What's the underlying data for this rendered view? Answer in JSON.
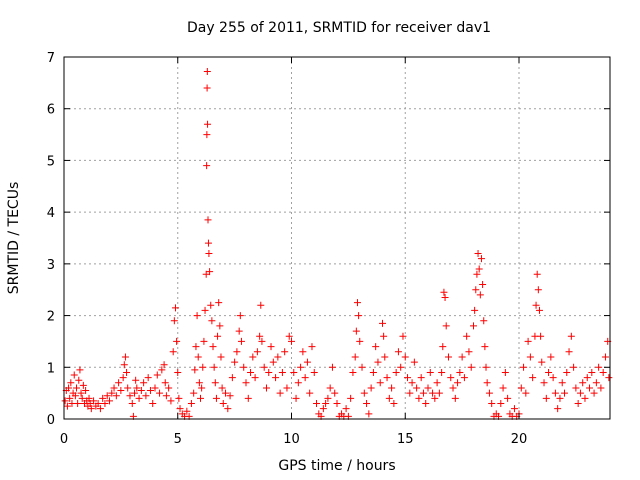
{
  "chart_data": {
    "type": "scatter",
    "title": "Day 255 of 2011, SRMTID for receiver dav1",
    "xlabel": "GPS time / hours",
    "ylabel": "SRMTID / TECUs",
    "xlim": [
      0,
      24
    ],
    "ylim": [
      0,
      7
    ],
    "xticks": [
      0,
      5,
      10,
      15,
      20
    ],
    "xtick_labels": [
      "0",
      "5",
      "10",
      "15",
      "20"
    ],
    "yticks": [
      0,
      1,
      2,
      3,
      4,
      5,
      6,
      7
    ],
    "ytick_labels": [
      "0",
      "1",
      "2",
      "3",
      "4",
      "5",
      "6",
      "7"
    ],
    "grid": true,
    "marker": "+",
    "series": [
      {
        "name": "SRMTID",
        "color": "#ff0000",
        "points": [
          [
            0.05,
            0.35
          ],
          [
            0.1,
            0.55
          ],
          [
            0.15,
            0.25
          ],
          [
            0.2,
            0.6
          ],
          [
            0.25,
            0.4
          ],
          [
            0.3,
            0.7
          ],
          [
            0.35,
            0.3
          ],
          [
            0.4,
            0.5
          ],
          [
            0.45,
            0.85
          ],
          [
            0.5,
            0.45
          ],
          [
            0.55,
            0.6
          ],
          [
            0.6,
            0.3
          ],
          [
            0.65,
            0.75
          ],
          [
            0.7,
            0.95
          ],
          [
            0.75,
            0.5
          ],
          [
            0.8,
            0.4
          ],
          [
            0.85,
            0.65
          ],
          [
            0.9,
            0.3
          ],
          [
            0.95,
            0.55
          ],
          [
            1.0,
            0.35
          ],
          [
            1.05,
            0.25
          ],
          [
            1.1,
            0.4
          ],
          [
            1.15,
            0.3
          ],
          [
            1.2,
            0.2
          ],
          [
            1.3,
            0.35
          ],
          [
            1.4,
            0.25
          ],
          [
            1.5,
            0.3
          ],
          [
            1.6,
            0.2
          ],
          [
            1.7,
            0.4
          ],
          [
            1.8,
            0.3
          ],
          [
            1.9,
            0.45
          ],
          [
            2.0,
            0.35
          ],
          [
            2.1,
            0.5
          ],
          [
            2.2,
            0.6
          ],
          [
            2.3,
            0.45
          ],
          [
            2.4,
            0.7
          ],
          [
            2.5,
            0.55
          ],
          [
            2.6,
            0.8
          ],
          [
            2.65,
            1.05
          ],
          [
            2.7,
            1.2
          ],
          [
            2.75,
            0.9
          ],
          [
            2.8,
            0.6
          ],
          [
            2.9,
            0.45
          ],
          [
            3.0,
            0.3
          ],
          [
            3.05,
            0.05
          ],
          [
            3.1,
            0.5
          ],
          [
            3.15,
            0.75
          ],
          [
            3.2,
            0.6
          ],
          [
            3.3,
            0.4
          ],
          [
            3.4,
            0.55
          ],
          [
            3.5,
            0.7
          ],
          [
            3.6,
            0.45
          ],
          [
            3.7,
            0.8
          ],
          [
            3.8,
            0.55
          ],
          [
            3.9,
            0.3
          ],
          [
            4.0,
            0.6
          ],
          [
            4.1,
            0.85
          ],
          [
            4.2,
            0.5
          ],
          [
            4.3,
            0.95
          ],
          [
            4.4,
            1.05
          ],
          [
            4.45,
            0.7
          ],
          [
            4.5,
            0.45
          ],
          [
            4.6,
            0.6
          ],
          [
            4.7,
            0.35
          ],
          [
            4.8,
            1.3
          ],
          [
            4.85,
            1.9
          ],
          [
            4.9,
            2.15
          ],
          [
            4.95,
            1.5
          ],
          [
            5.0,
            0.9
          ],
          [
            5.05,
            0.4
          ],
          [
            5.1,
            0.2
          ],
          [
            5.2,
            0.1
          ],
          [
            5.3,
            0.05
          ],
          [
            5.4,
            0.15
          ],
          [
            5.5,
            0.05
          ],
          [
            5.6,
            0.3
          ],
          [
            5.7,
            0.5
          ],
          [
            5.75,
            0.95
          ],
          [
            5.8,
            1.4
          ],
          [
            5.85,
            2.0
          ],
          [
            5.9,
            1.2
          ],
          [
            5.95,
            0.7
          ],
          [
            6.0,
            0.4
          ],
          [
            6.05,
            0.6
          ],
          [
            6.1,
            1.0
          ],
          [
            6.15,
            1.5
          ],
          [
            6.2,
            2.1
          ],
          [
            6.25,
            2.8
          ],
          [
            6.27,
            4.9
          ],
          [
            6.28,
            5.5
          ],
          [
            6.29,
            6.4
          ],
          [
            6.3,
            6.72
          ],
          [
            6.31,
            5.7
          ],
          [
            6.33,
            3.85
          ],
          [
            6.35,
            3.4
          ],
          [
            6.37,
            3.2
          ],
          [
            6.4,
            2.85
          ],
          [
            6.45,
            2.2
          ],
          [
            6.5,
            1.9
          ],
          [
            6.55,
            1.4
          ],
          [
            6.6,
            1.0
          ],
          [
            6.65,
            0.7
          ],
          [
            6.7,
            0.4
          ],
          [
            6.75,
            1.6
          ],
          [
            6.8,
            2.25
          ],
          [
            6.85,
            1.8
          ],
          [
            6.9,
            1.2
          ],
          [
            6.95,
            0.6
          ],
          [
            7.0,
            0.3
          ],
          [
            7.1,
            0.5
          ],
          [
            7.2,
            0.2
          ],
          [
            7.3,
            0.45
          ],
          [
            7.4,
            0.8
          ],
          [
            7.5,
            1.1
          ],
          [
            7.6,
            1.3
          ],
          [
            7.7,
            1.7
          ],
          [
            7.75,
            2.0
          ],
          [
            7.8,
            1.5
          ],
          [
            7.9,
            1.0
          ],
          [
            8.0,
            0.7
          ],
          [
            8.1,
            0.4
          ],
          [
            8.2,
            0.9
          ],
          [
            8.3,
            1.2
          ],
          [
            8.4,
            0.8
          ],
          [
            8.5,
            1.3
          ],
          [
            8.6,
            1.6
          ],
          [
            8.65,
            2.2
          ],
          [
            8.7,
            1.5
          ],
          [
            8.8,
            1.0
          ],
          [
            8.9,
            0.6
          ],
          [
            9.0,
            0.9
          ],
          [
            9.1,
            1.4
          ],
          [
            9.2,
            1.1
          ],
          [
            9.3,
            0.8
          ],
          [
            9.4,
            1.2
          ],
          [
            9.5,
            0.5
          ],
          [
            9.6,
            0.9
          ],
          [
            9.7,
            1.3
          ],
          [
            9.8,
            0.6
          ],
          [
            9.9,
            1.6
          ],
          [
            10.0,
            1.5
          ],
          [
            10.1,
            0.9
          ],
          [
            10.2,
            0.4
          ],
          [
            10.3,
            0.7
          ],
          [
            10.4,
            1.0
          ],
          [
            10.5,
            1.3
          ],
          [
            10.6,
            0.8
          ],
          [
            10.7,
            1.1
          ],
          [
            10.8,
            0.5
          ],
          [
            10.9,
            1.4
          ],
          [
            11.0,
            0.9
          ],
          [
            11.1,
            0.3
          ],
          [
            11.2,
            0.1
          ],
          [
            11.3,
            0.05
          ],
          [
            11.4,
            0.2
          ],
          [
            11.5,
            0.3
          ],
          [
            11.6,
            0.4
          ],
          [
            11.7,
            0.6
          ],
          [
            11.8,
            1.0
          ],
          [
            11.9,
            0.5
          ],
          [
            12.0,
            0.3
          ],
          [
            12.1,
            0.05
          ],
          [
            12.2,
            0.1
          ],
          [
            12.3,
            0.05
          ],
          [
            12.4,
            0.2
          ],
          [
            12.5,
            0.05
          ],
          [
            12.6,
            0.4
          ],
          [
            12.7,
            0.9
          ],
          [
            12.8,
            1.2
          ],
          [
            12.85,
            1.7
          ],
          [
            12.9,
            2.25
          ],
          [
            12.95,
            2.0
          ],
          [
            13.0,
            1.5
          ],
          [
            13.1,
            1.0
          ],
          [
            13.2,
            0.5
          ],
          [
            13.3,
            0.3
          ],
          [
            13.4,
            0.1
          ],
          [
            13.5,
            0.6
          ],
          [
            13.6,
            0.9
          ],
          [
            13.7,
            1.4
          ],
          [
            13.8,
            1.1
          ],
          [
            13.9,
            0.7
          ],
          [
            14.0,
            1.85
          ],
          [
            14.05,
            1.6
          ],
          [
            14.1,
            1.2
          ],
          [
            14.2,
            0.8
          ],
          [
            14.3,
            0.4
          ],
          [
            14.4,
            0.6
          ],
          [
            14.5,
            0.3
          ],
          [
            14.6,
            0.9
          ],
          [
            14.7,
            1.3
          ],
          [
            14.8,
            1.0
          ],
          [
            14.9,
            1.6
          ],
          [
            15.0,
            1.2
          ],
          [
            15.1,
            0.8
          ],
          [
            15.2,
            0.5
          ],
          [
            15.3,
            0.7
          ],
          [
            15.4,
            1.1
          ],
          [
            15.5,
            0.6
          ],
          [
            15.6,
            0.4
          ],
          [
            15.7,
            0.8
          ],
          [
            15.8,
            0.5
          ],
          [
            15.9,
            0.3
          ],
          [
            16.0,
            0.6
          ],
          [
            16.1,
            0.9
          ],
          [
            16.2,
            0.5
          ],
          [
            16.3,
            0.4
          ],
          [
            16.4,
            0.7
          ],
          [
            16.5,
            0.5
          ],
          [
            16.6,
            0.9
          ],
          [
            16.65,
            1.4
          ],
          [
            16.7,
            2.45
          ],
          [
            16.75,
            2.35
          ],
          [
            16.8,
            1.8
          ],
          [
            16.9,
            1.2
          ],
          [
            17.0,
            0.8
          ],
          [
            17.1,
            0.6
          ],
          [
            17.2,
            0.4
          ],
          [
            17.3,
            0.7
          ],
          [
            17.4,
            0.9
          ],
          [
            17.5,
            1.2
          ],
          [
            17.6,
            0.8
          ],
          [
            17.7,
            1.6
          ],
          [
            17.8,
            1.3
          ],
          [
            17.9,
            1.0
          ],
          [
            18.0,
            1.8
          ],
          [
            18.05,
            2.1
          ],
          [
            18.1,
            2.5
          ],
          [
            18.15,
            2.8
          ],
          [
            18.2,
            3.2
          ],
          [
            18.25,
            2.9
          ],
          [
            18.3,
            2.4
          ],
          [
            18.35,
            3.1
          ],
          [
            18.4,
            2.6
          ],
          [
            18.45,
            1.9
          ],
          [
            18.5,
            1.4
          ],
          [
            18.55,
            1.0
          ],
          [
            18.6,
            0.7
          ],
          [
            18.7,
            0.5
          ],
          [
            18.8,
            0.3
          ],
          [
            18.9,
            0.05
          ],
          [
            19.0,
            0.1
          ],
          [
            19.1,
            0.05
          ],
          [
            19.2,
            0.3
          ],
          [
            19.3,
            0.6
          ],
          [
            19.4,
            0.9
          ],
          [
            19.5,
            0.4
          ],
          [
            19.6,
            0.1
          ],
          [
            19.7,
            0.05
          ],
          [
            19.8,
            0.2
          ],
          [
            19.9,
            0.05
          ],
          [
            20.0,
            0.1
          ],
          [
            20.1,
            0.6
          ],
          [
            20.2,
            1.0
          ],
          [
            20.3,
            0.5
          ],
          [
            20.4,
            1.5
          ],
          [
            20.5,
            1.2
          ],
          [
            20.6,
            0.8
          ],
          [
            20.7,
            1.6
          ],
          [
            20.75,
            2.2
          ],
          [
            20.8,
            2.8
          ],
          [
            20.85,
            2.5
          ],
          [
            20.9,
            2.1
          ],
          [
            20.95,
            1.6
          ],
          [
            21.0,
            1.1
          ],
          [
            21.1,
            0.7
          ],
          [
            21.2,
            0.4
          ],
          [
            21.3,
            0.9
          ],
          [
            21.4,
            1.2
          ],
          [
            21.5,
            0.8
          ],
          [
            21.6,
            0.5
          ],
          [
            21.7,
            0.2
          ],
          [
            21.8,
            0.4
          ],
          [
            21.9,
            0.7
          ],
          [
            22.0,
            0.5
          ],
          [
            22.1,
            0.9
          ],
          [
            22.2,
            1.3
          ],
          [
            22.3,
            1.6
          ],
          [
            22.4,
            1.0
          ],
          [
            22.5,
            0.6
          ],
          [
            22.6,
            0.3
          ],
          [
            22.7,
            0.5
          ],
          [
            22.8,
            0.7
          ],
          [
            22.9,
            0.4
          ],
          [
            23.0,
            0.8
          ],
          [
            23.1,
            0.6
          ],
          [
            23.2,
            0.9
          ],
          [
            23.3,
            0.5
          ],
          [
            23.4,
            0.7
          ],
          [
            23.5,
            1.0
          ],
          [
            23.6,
            0.6
          ],
          [
            23.7,
            0.9
          ],
          [
            23.8,
            1.2
          ],
          [
            23.9,
            1.5
          ],
          [
            23.95,
            0.8
          ]
        ]
      }
    ]
  }
}
